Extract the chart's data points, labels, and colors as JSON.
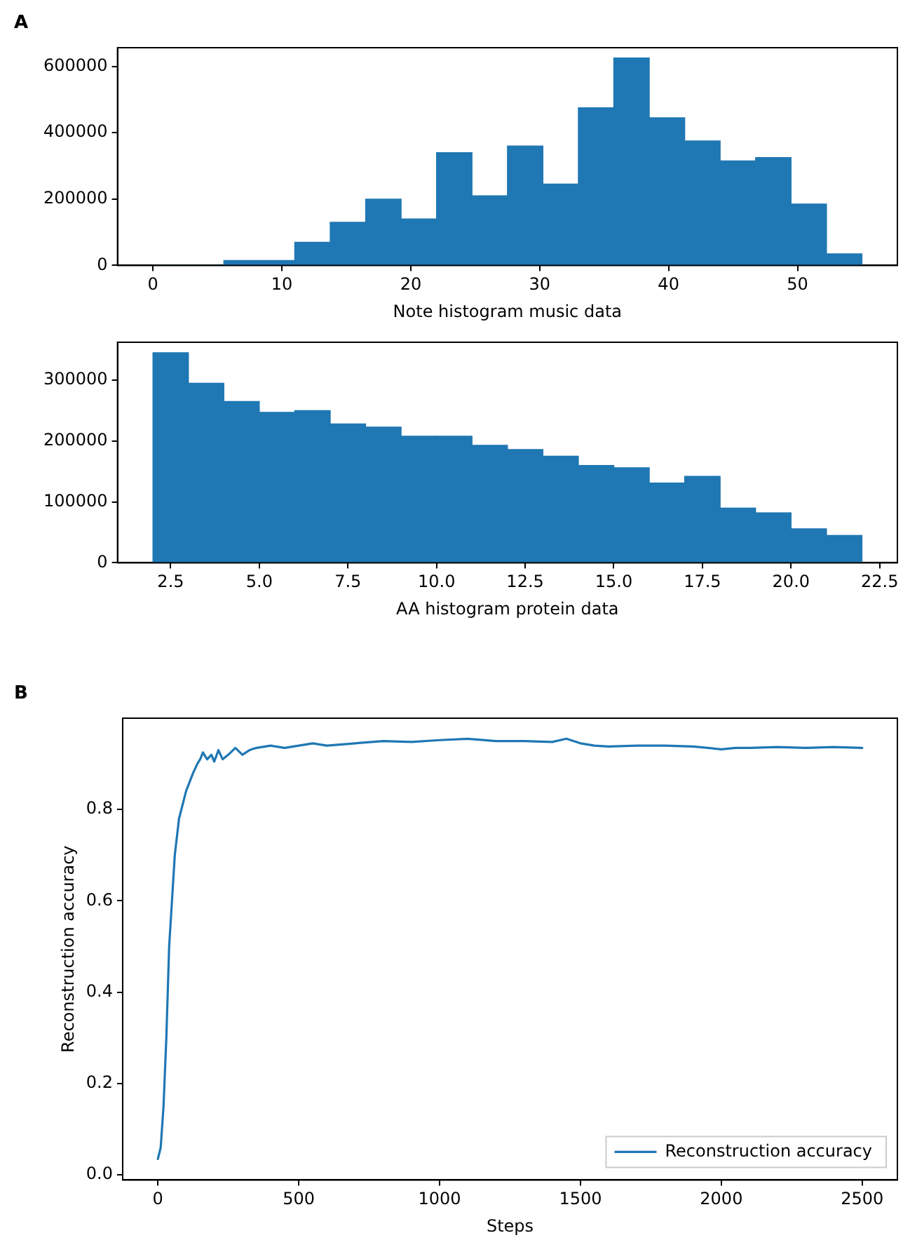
{
  "chart_data": [
    {
      "type": "histogram",
      "annotations": [
        "A"
      ],
      "xlabel": "Note histogram music data",
      "bins": [
        0,
        2.75,
        5.5,
        8.25,
        11,
        13.75,
        16.5,
        19.25,
        22,
        24.75,
        27.5,
        30.25,
        33,
        35.75,
        38.5,
        41.25,
        44,
        46.75,
        49.5,
        52.25,
        55
      ],
      "values": [
        0,
        0,
        15000,
        15000,
        70000,
        130000,
        200000,
        140000,
        340000,
        210000,
        360000,
        245000,
        475000,
        625000,
        445000,
        375000,
        315000,
        325000,
        185000,
        35000
      ],
      "color": "#1f77b4",
      "xlim": [
        -2.75,
        57.75
      ],
      "xticks": [
        0,
        10,
        20,
        30,
        40,
        50
      ],
      "ylim": [
        0,
        656250
      ],
      "yticks": [
        0,
        200000,
        400000,
        600000
      ],
      "grid": false,
      "legend": false
    },
    {
      "type": "histogram",
      "xlabel": "AA histogram protein data",
      "bins": [
        2,
        3,
        4,
        5,
        6,
        7,
        8,
        9,
        10,
        11,
        12,
        13,
        14,
        15,
        16,
        17,
        18,
        19,
        20,
        21,
        22
      ],
      "values": [
        345000,
        295000,
        265000,
        247000,
        250000,
        228000,
        223000,
        208000,
        208000,
        193000,
        186000,
        175000,
        160000,
        156000,
        131000,
        142000,
        90000,
        82000,
        56000,
        45000
      ],
      "color": "#1f77b4",
      "xlim": [
        1,
        23
      ],
      "xticks": [
        2.5,
        {
          "value": 5,
          "label": "5.0"
        },
        7.5,
        {
          "value": 10,
          "label": "10.0"
        },
        12.5,
        {
          "value": 15,
          "label": "15.0"
        },
        17.5,
        {
          "value": 20,
          "label": "20.0"
        },
        22.5
      ],
      "ylim": [
        0,
        362250
      ],
      "yticks": [
        0,
        100000,
        200000,
        300000
      ],
      "grid": false,
      "legend": false
    },
    {
      "type": "line",
      "annotations": [
        "B"
      ],
      "xlabel": "Steps",
      "ylabel": "Reconstruction accuracy",
      "series": [
        {
          "name": "Reconstruction accuracy",
          "color": "#1f77b4",
          "x": [
            0,
            10,
            20,
            30,
            40,
            50,
            60,
            75,
            100,
            125,
            140,
            150,
            160,
            175,
            190,
            200,
            215,
            230,
            250,
            275,
            300,
            325,
            350,
            400,
            450,
            500,
            550,
            600,
            700,
            800,
            900,
            1000,
            1100,
            1200,
            1300,
            1400,
            1450,
            1500,
            1550,
            1600,
            1700,
            1800,
            1900,
            2000,
            2050,
            2100,
            2200,
            2300,
            2400,
            2500
          ],
          "values": [
            0.035,
            0.06,
            0.15,
            0.3,
            0.5,
            0.6,
            0.7,
            0.78,
            0.84,
            0.88,
            0.9,
            0.91,
            0.925,
            0.91,
            0.92,
            0.905,
            0.93,
            0.91,
            0.92,
            0.935,
            0.92,
            0.93,
            0.935,
            0.94,
            0.935,
            0.94,
            0.945,
            0.94,
            0.945,
            0.95,
            0.948,
            0.952,
            0.955,
            0.95,
            0.95,
            0.948,
            0.955,
            0.945,
            0.94,
            0.938,
            0.94,
            0.94,
            0.938,
            0.932,
            0.935,
            0.935,
            0.937,
            0.935,
            0.937,
            0.935
          ]
        }
      ],
      "xlim": [
        -125,
        2625
      ],
      "xticks": [
        0,
        500,
        1000,
        1500,
        2000,
        2500
      ],
      "ylim": [
        -0.011,
        1.0
      ],
      "yticks": [
        {
          "value": 0,
          "label": "0.0"
        },
        0.2,
        0.4,
        0.6,
        0.8
      ],
      "grid": false,
      "legend": "bottom right",
      "marker": "none",
      "line_style": "solid"
    }
  ]
}
